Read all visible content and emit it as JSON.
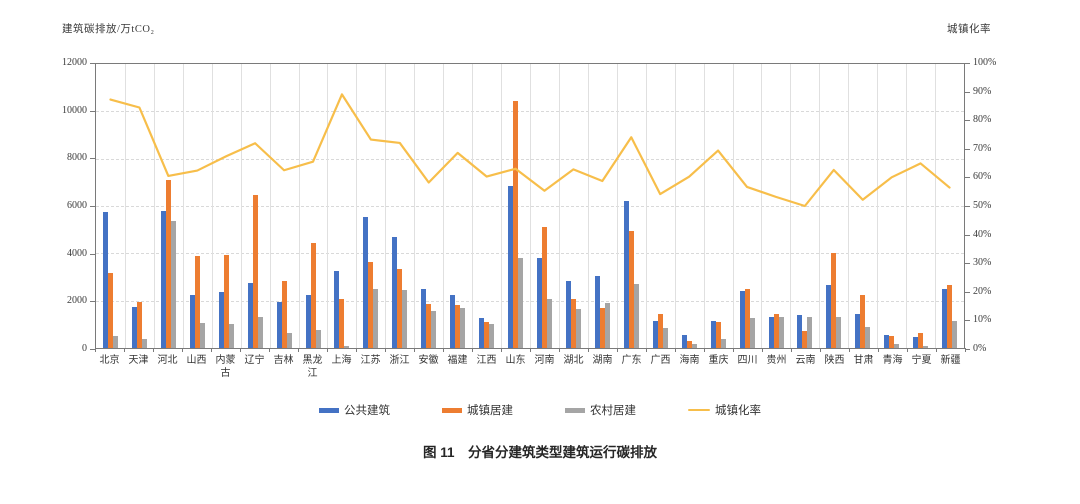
{
  "caption": "图 11　分省分建筑类型建筑运行碳排放",
  "chart_data": {
    "type": "bar",
    "subtype": "grouped bars with secondary-axis line",
    "title": "图 11 分省分建筑类型建筑运行碳排放",
    "categories": [
      "北京",
      "天津",
      "河北",
      "山西",
      "内蒙古",
      "辽宁",
      "吉林",
      "黑龙江",
      "上海",
      "江苏",
      "浙江",
      "安徽",
      "福建",
      "江西",
      "山东",
      "河南",
      "湖北",
      "湖南",
      "广东",
      "广西",
      "海南",
      "重庆",
      "四川",
      "贵州",
      "云南",
      "陕西",
      "甘肃",
      "青海",
      "宁夏",
      "新疆"
    ],
    "series": [
      {
        "name": "公共建筑",
        "type": "bar",
        "color": "#4472C4",
        "axis": "left",
        "values": [
          5750,
          1750,
          5800,
          2250,
          2350,
          2750,
          1950,
          2250,
          3250,
          5550,
          4700,
          2500,
          2250,
          1250,
          6850,
          3800,
          2850,
          3050,
          6200,
          1150,
          550,
          1150,
          2400,
          1300,
          1400,
          2650,
          1450,
          550,
          480,
          2500
        ]
      },
      {
        "name": "城镇居建",
        "type": "bar",
        "color": "#ED7D31",
        "axis": "left",
        "values": [
          3150,
          1950,
          7100,
          3900,
          3950,
          6450,
          2850,
          4450,
          2050,
          3650,
          3350,
          1850,
          1800,
          1100,
          10450,
          5100,
          2050,
          1700,
          4950,
          1450,
          300,
          1100,
          2500,
          1450,
          700,
          4000,
          2250,
          500,
          650,
          2650
        ]
      },
      {
        "name": "农村居建",
        "type": "bar",
        "color": "#A5A5A5",
        "axis": "left",
        "values": [
          500,
          400,
          5350,
          1050,
          1000,
          1300,
          650,
          750,
          100,
          2500,
          2450,
          1550,
          1700,
          1000,
          3800,
          2050,
          1650,
          1900,
          2700,
          850,
          170,
          400,
          1250,
          1300,
          1300,
          1300,
          900,
          150,
          100,
          1150
        ]
      },
      {
        "name": "城镇化率",
        "type": "line",
        "color": "#F7BE4A",
        "axis": "right",
        "values": [
          87.5,
          84.7,
          60.6,
          62.5,
          67.5,
          72.1,
          62.6,
          65.6,
          89.3,
          73.4,
          72.2,
          58.3,
          68.7,
          60.4,
          63.1,
          55.4,
          62.9,
          58.8,
          74.2,
          54.2,
          60.3,
          69.5,
          56.7,
          53.2,
          50.0,
          62.7,
          52.2,
          60.1,
          65.0,
          56.5
        ]
      }
    ],
    "left_axis": {
      "title": "建筑碳排放/万tCO₂",
      "min": 0,
      "max": 12000,
      "step": 2000,
      "tick_labels": [
        "12000",
        "10000",
        "8000",
        "6000",
        "4000",
        "2000",
        "0"
      ]
    },
    "right_axis": {
      "title": "城镇化率",
      "min": 0,
      "max": 100,
      "step": 10,
      "tick_labels": [
        "100%",
        "90%",
        "80%",
        "70%",
        "60%",
        "50%",
        "40%",
        "30%",
        "20%",
        "10%",
        "0%"
      ]
    },
    "grid": "horizontal dashed lines at each 2000 (left axis); vertical solid light lines at category boundaries; full plot border",
    "legend_position": "bottom"
  }
}
